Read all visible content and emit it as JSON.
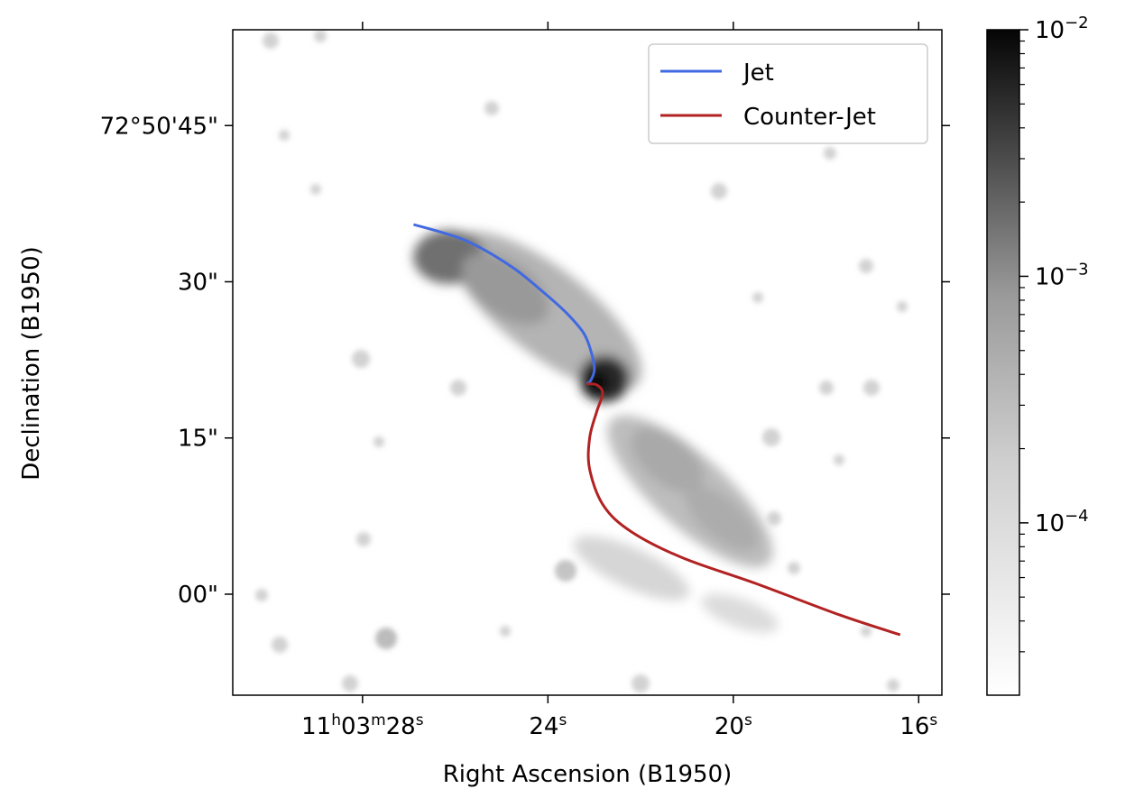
{
  "chart_data": {
    "type": "line",
    "title": "",
    "xlabel": "Right Ascension (B1950)",
    "ylabel": "Declination (B1950)",
    "x_ticks": [
      {
        "h": "11",
        "m": "03",
        "s": "28",
        "value_s": 28
      },
      {
        "s": "24",
        "value_s": 24
      },
      {
        "s": "20",
        "value_s": 20
      },
      {
        "s": "16",
        "value_s": 16
      }
    ],
    "y_ticks": [
      {
        "label": "72°50'45\"",
        "value_arcsec": 45
      },
      {
        "label": "30\"",
        "value_arcsec": 30
      },
      {
        "label": "15\"",
        "value_arcsec": 15
      },
      {
        "label": "00\"",
        "value_arcsec": 0
      }
    ],
    "xlim_s": [
      30.8,
      15.5
    ],
    "ylim_arcsec": [
      -9.7,
      54.2
    ],
    "legend": {
      "position": "top-right",
      "entries": [
        "Jet",
        "Counter-Jet"
      ]
    },
    "colorbar": {
      "scale": "log",
      "range": [
        2e-05,
        0.01
      ],
      "ticks": [
        {
          "base": "10",
          "exp": "−2",
          "value": 0.01
        },
        {
          "base": "10",
          "exp": "−3",
          "value": 0.001
        },
        {
          "base": "10",
          "exp": "−4",
          "value": 0.0001
        }
      ]
    },
    "series": [
      {
        "name": "Jet",
        "color": "#4169e1",
        "x_s": [
          26.9,
          25.8,
          24.8,
          24.1,
          23.6,
          23.22,
          23.05,
          23.0,
          23.08,
          23.16
        ],
        "y_arcsec": [
          35.5,
          34.0,
          31.5,
          29.0,
          27.0,
          25.0,
          23.0,
          21.5,
          20.5,
          20.2
        ]
      },
      {
        "name": "Counter-Jet",
        "color": "#b22222",
        "x_s": [
          23.16,
          22.95,
          22.82,
          22.95,
          23.1,
          23.1,
          22.8,
          22.2,
          21.1,
          19.5,
          17.7,
          16.4
        ],
        "y_arcsec": [
          20.2,
          20.1,
          19.3,
          17.5,
          15.0,
          12.0,
          8.5,
          6.0,
          3.5,
          1.0,
          -2.0,
          -3.9
        ]
      }
    ],
    "image_description_note": ""
  },
  "colors": {
    "jet": "#4169e1",
    "counter_jet": "#b22222"
  }
}
